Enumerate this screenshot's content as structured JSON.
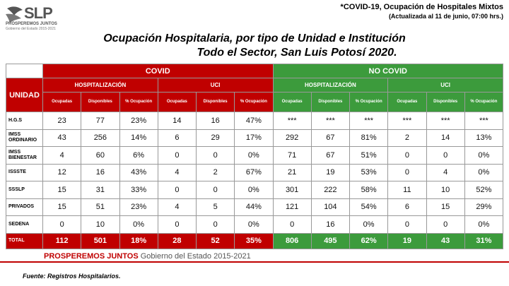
{
  "header": {
    "logo_text": "SLP",
    "logo_motto": "PROSPEREMOS JUNTOS",
    "logo_sub": "Gobierno del Estado 2015-2021",
    "note_line1": "*COVID-19, Ocupación de Hospitales Mixtos",
    "note_line2": "(Actualizada al 11 de junio, 07:00 hrs.)"
  },
  "title": {
    "line1": "Ocupación Hospitalaria, por tipo de Unidad e Institución",
    "line2": "Todo el Sector, San Luis Potosí 2020."
  },
  "table": {
    "unit_header": "UNIDAD",
    "group_headers": [
      "COVID",
      "NO COVID"
    ],
    "sub_headers": [
      "HOSPITALIZACIÓN",
      "UCI",
      "HOSPITALIZACIÓN",
      "UCI"
    ],
    "col_headers": [
      "Ocupadas",
      "Disponibles",
      "% Ocupación",
      "Ocupadas",
      "Disponibles",
      "% Ocupación",
      "Ocupadas",
      "Disponibles",
      "% Ocupación",
      "Ocupadas",
      "Disponibles",
      "% Ocupación"
    ],
    "rows": [
      {
        "label": "H.G.S",
        "cells": [
          "23",
          "77",
          "23%",
          "14",
          "16",
          "47%",
          "***",
          "***",
          "***",
          "***",
          "***",
          "***"
        ]
      },
      {
        "label": "IMSS ORDINARIO",
        "cells": [
          "43",
          "256",
          "14%",
          "6",
          "29",
          "17%",
          "292",
          "67",
          "81%",
          "2",
          "14",
          "13%"
        ]
      },
      {
        "label": "IMSS BIENESTAR",
        "cells": [
          "4",
          "60",
          "6%",
          "0",
          "0",
          "0%",
          "71",
          "67",
          "51%",
          "0",
          "0",
          "0%"
        ]
      },
      {
        "label": "ISSSTE",
        "cells": [
          "12",
          "16",
          "43%",
          "4",
          "2",
          "67%",
          "21",
          "19",
          "53%",
          "0",
          "4",
          "0%"
        ]
      },
      {
        "label": "SSSLP",
        "cells": [
          "15",
          "31",
          "33%",
          "0",
          "0",
          "0%",
          "301",
          "222",
          "58%",
          "11",
          "10",
          "52%"
        ]
      },
      {
        "label": "PRIVADOS",
        "cells": [
          "15",
          "51",
          "23%",
          "4",
          "5",
          "44%",
          "121",
          "104",
          "54%",
          "6",
          "15",
          "29%"
        ]
      },
      {
        "label": "SEDENA",
        "cells": [
          "0",
          "10",
          "0%",
          "0",
          "0",
          "0%",
          "0",
          "16",
          "0%",
          "0",
          "0",
          "0%"
        ]
      }
    ],
    "total": {
      "label": "TOTAL",
      "cells": [
        "112",
        "501",
        "18%",
        "28",
        "52",
        "35%",
        "806",
        "495",
        "62%",
        "19",
        "43",
        "31%"
      ]
    }
  },
  "footer": {
    "motto": "PROSPEREMOS JUNTOS",
    "government": "Gobierno del Estado 2015-2021",
    "source": "Fuente: Registros Hospitalarios."
  }
}
